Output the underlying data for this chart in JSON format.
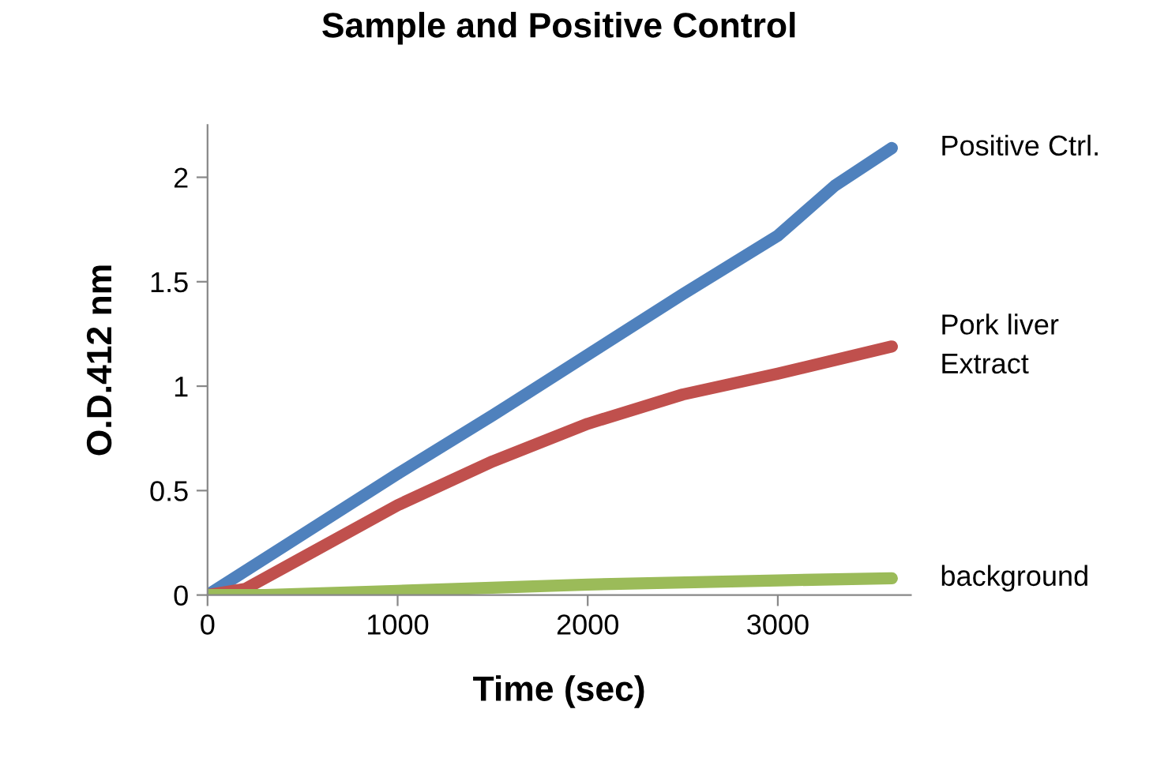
{
  "chart_data": {
    "type": "line",
    "title": "Sample and Positive Control",
    "xlabel": "Time (sec)",
    "ylabel": "O.D.412 nm",
    "xlim": [
      0,
      3700
    ],
    "xticks": [
      0,
      1000,
      2000,
      3000
    ],
    "ylim": [
      0,
      2.25
    ],
    "yticks": [
      0,
      0.5,
      1,
      1.5,
      2
    ],
    "grid": false,
    "legend": false,
    "marker": "none",
    "line_style": "solid",
    "series": [
      {
        "name": "Positive Ctrl.",
        "color": "#4f81bd",
        "x": [
          0,
          500,
          1000,
          1500,
          2000,
          2500,
          3000,
          3300,
          3600
        ],
        "values": [
          0,
          0.29,
          0.58,
          0.86,
          1.15,
          1.44,
          1.72,
          1.96,
          2.14
        ]
      },
      {
        "name": "Pork liver\nExtract",
        "color": "#c0504d",
        "x": [
          0,
          200,
          500,
          1000,
          1500,
          2000,
          2500,
          3000,
          3600
        ],
        "values": [
          0,
          0.03,
          0.18,
          0.43,
          0.64,
          0.82,
          0.96,
          1.06,
          1.19
        ]
      },
      {
        "name": "background",
        "color": "#9bbb59",
        "x": [
          0,
          300,
          1000,
          2000,
          3000,
          3600
        ],
        "values": [
          0,
          0,
          0.02,
          0.05,
          0.07,
          0.08
        ]
      }
    ]
  }
}
